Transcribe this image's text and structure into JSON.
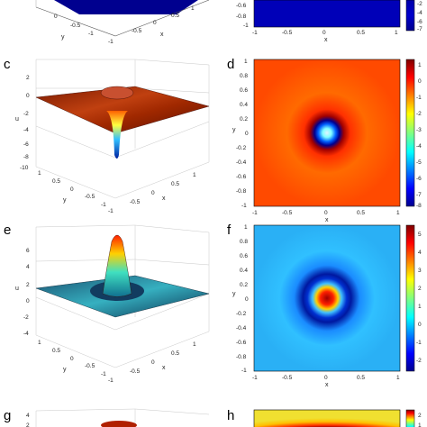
{
  "panels": {
    "top_left": {
      "tick_labels": [
        "-1",
        "-0.5",
        "0",
        "0.5",
        "1",
        "0",
        "-0.5",
        "-1"
      ],
      "axis_labels": [
        "y",
        "x"
      ]
    },
    "top_right": {
      "tick_labels": [
        "-0.6",
        "-0.8",
        "-1",
        "-0.5",
        "0",
        "0.5",
        "1"
      ],
      "axis_labels": [
        "x"
      ],
      "colorbar_ticks": [
        "-2",
        "-4",
        "-6",
        "-7"
      ]
    },
    "c": {
      "label": "c",
      "z_label": "u",
      "z_ticks": [
        "2",
        "0",
        "-2",
        "-4",
        "-6",
        "-8",
        "-10"
      ],
      "y_ticks": [
        "1",
        "0.5",
        "0",
        "-0.5",
        "-1"
      ],
      "x_ticks": [
        "-1",
        "-0.5",
        "0",
        "0.5",
        "1"
      ],
      "y_label": "y",
      "x_label": "x"
    },
    "d": {
      "label": "d",
      "tick_labels": [
        "1",
        "0.8",
        "0.6",
        "0.4",
        "0.2",
        "0",
        "-0.2",
        "-0.4",
        "-0.6",
        "-0.8",
        "-1"
      ],
      "x_ticks": [
        "-1",
        "-0.5",
        "0",
        "0.5",
        "1"
      ],
      "x_label": "x",
      "y_label": "y",
      "colorbar_ticks": [
        "1",
        "0",
        "-1",
        "-2",
        "-3",
        "-4",
        "-5",
        "-6",
        "-7",
        "-8"
      ]
    },
    "e": {
      "label": "e",
      "z_label": "u",
      "z_ticks": [
        "6",
        "4",
        "2",
        "0",
        "-2",
        "-4"
      ],
      "y_ticks": [
        "1",
        "0.5",
        "0",
        "-0.5",
        "-1"
      ],
      "x_ticks": [
        "-1",
        "-0.5",
        "0",
        "0.5",
        "1"
      ],
      "y_label": "y",
      "x_label": "x"
    },
    "f": {
      "label": "f",
      "tick_labels": [
        "1",
        "0.8",
        "0.6",
        "0.4",
        "0.2",
        "0",
        "-0.2",
        "-0.4",
        "-0.6",
        "-0.8",
        "-1"
      ],
      "x_ticks": [
        "-1",
        "-0.5",
        "0",
        "0.5",
        "1"
      ],
      "x_label": "x",
      "y_label": "y",
      "colorbar_ticks": [
        "5",
        "4",
        "3",
        "2",
        "1",
        "0",
        "-1",
        "-2"
      ]
    },
    "g": {
      "label": "g",
      "z_ticks": [
        "4",
        "2"
      ]
    },
    "h": {
      "label": "h",
      "colorbar_ticks": [
        "2",
        "1"
      ]
    }
  }
}
